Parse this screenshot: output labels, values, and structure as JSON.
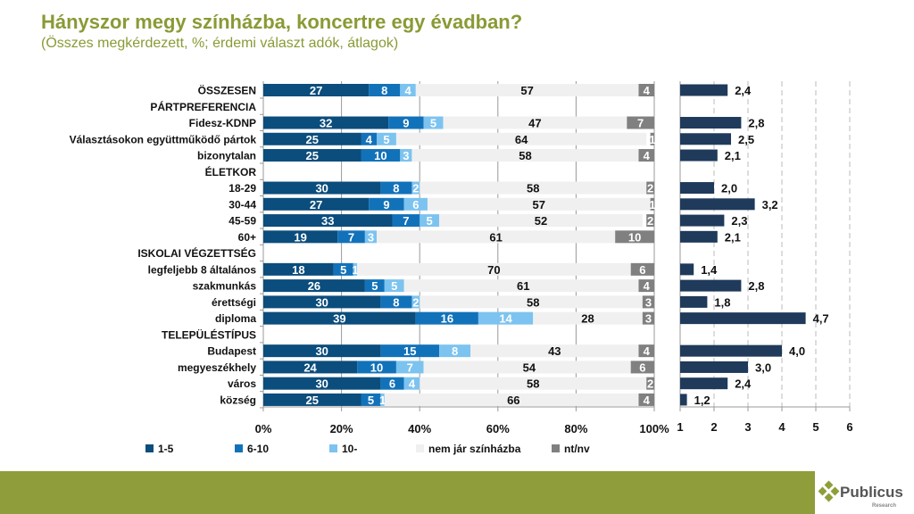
{
  "title": "Hányszor megy színházba, koncertre egy évadban?",
  "subtitle": "(Összes megkérdezett, %; érdemi választ adók, átlagok)",
  "colors": {
    "1-5": "#0b4d7c",
    "6-10": "#1272b9",
    "10-": "#7cc3f0",
    "nem jár színházba": "#f0f0f0",
    "nt/nv": "#808080",
    "mean_bar": "#1f3a5a",
    "accent": "#8f9e3a"
  },
  "logo": {
    "name": "Publicus",
    "sub": "Research"
  },
  "chart_data": [
    {
      "type": "bar",
      "orientation": "horizontal",
      "stacked": true,
      "xlim": [
        0,
        100
      ],
      "x_ticks": [
        "0%",
        "20%",
        "40%",
        "60%",
        "80%",
        "100%"
      ],
      "legend_position": "bottom",
      "categories": [
        "ÖSSZESEN",
        "PÁRTPREFERENCIA",
        "Fidesz-KDNP",
        "Választásokon együttműködő pártok",
        "bizonytalan",
        "ÉLETKOR",
        "18-29",
        "30-44",
        "45-59",
        "60+",
        "ISKOLAI VÉGZETTSÉG",
        "legfeljebb 8 általános",
        "szakmunkás",
        "érettségi",
        "diploma",
        "TELEPÜLÉSTÍPUS",
        "Budapest",
        "megyeszékhely",
        "város",
        "község"
      ],
      "series": [
        {
          "name": "1-5",
          "values": [
            27,
            null,
            32,
            25,
            25,
            null,
            30,
            27,
            33,
            19,
            null,
            18,
            26,
            30,
            39,
            null,
            30,
            24,
            30,
            25
          ]
        },
        {
          "name": "6-10",
          "values": [
            8,
            null,
            9,
            4,
            10,
            null,
            8,
            9,
            7,
            7,
            null,
            5,
            5,
            8,
            16,
            null,
            15,
            10,
            6,
            5
          ]
        },
        {
          "name": "10-",
          "values": [
            4,
            null,
            5,
            5,
            3,
            null,
            2,
            6,
            5,
            3,
            null,
            1,
            5,
            2,
            14,
            null,
            8,
            7,
            4,
            1
          ]
        },
        {
          "name": "nem jár színházba",
          "values": [
            57,
            null,
            47,
            64,
            58,
            null,
            58,
            57,
            52,
            61,
            null,
            70,
            61,
            58,
            28,
            null,
            43,
            54,
            58,
            66
          ]
        },
        {
          "name": "nt/nv",
          "values": [
            4,
            null,
            7,
            1,
            4,
            null,
            2,
            1,
            2,
            10,
            null,
            6,
            4,
            3,
            3,
            null,
            4,
            6,
            2,
            4
          ]
        }
      ]
    },
    {
      "type": "bar",
      "orientation": "horizontal",
      "xlim": [
        1,
        6
      ],
      "x_ticks": [
        "1",
        "2",
        "3",
        "4",
        "5",
        "6"
      ],
      "grid": "dashed vertical",
      "values": [
        2.4,
        null,
        2.8,
        2.5,
        2.1,
        null,
        2.0,
        3.2,
        2.3,
        2.1,
        null,
        1.4,
        2.8,
        1.8,
        4.7,
        null,
        4.0,
        3.0,
        2.4,
        1.2
      ],
      "labels": [
        "2,4",
        "",
        "2,8",
        "2,5",
        "2,1",
        "",
        "2,0",
        "3,2",
        "2,3",
        "2,1",
        "",
        "1,4",
        "2,8",
        "1,8",
        "4,7",
        "",
        "4,0",
        "3,0",
        "2,4",
        "1,2"
      ]
    }
  ]
}
